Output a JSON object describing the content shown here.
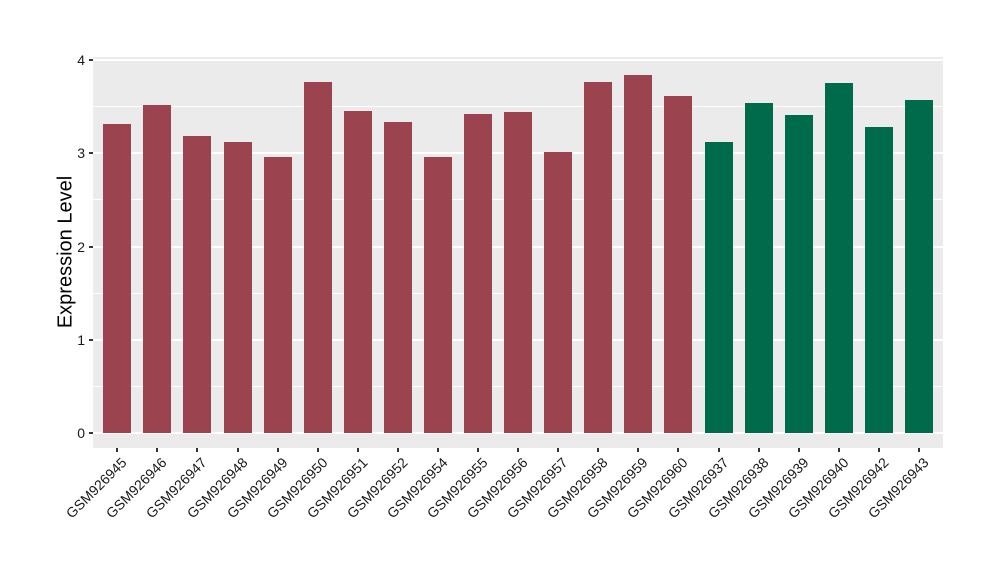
{
  "chart_data": {
    "type": "bar",
    "title": "",
    "xlabel": "",
    "ylabel": "Expression Level",
    "ylim": [
      0,
      4
    ],
    "yticks": [
      "0",
      "1",
      "2",
      "3",
      "4"
    ],
    "minor_gridlines": [
      0.5,
      1.5,
      2.5,
      3.5
    ],
    "grid": "on",
    "legend_position": "none",
    "panel_background": "#EBEBEB",
    "gridline_color": "#FFFFFF",
    "group_colors": {
      "red_group": "#9B4450",
      "green_group": "#006B4A"
    },
    "categories": [
      "GSM926945",
      "GSM926946",
      "GSM926947",
      "GSM926948",
      "GSM926949",
      "GSM926950",
      "GSM926951",
      "GSM926952",
      "GSM926954",
      "GSM926955",
      "GSM926956",
      "GSM926957",
      "GSM926958",
      "GSM926959",
      "GSM926960",
      "GSM926937",
      "GSM926938",
      "GSM926939",
      "GSM926940",
      "GSM926942",
      "GSM926943"
    ],
    "values": [
      3.31,
      3.52,
      3.19,
      3.12,
      2.96,
      3.76,
      3.45,
      3.34,
      2.96,
      3.42,
      3.44,
      3.01,
      3.76,
      3.84,
      3.61,
      3.12,
      3.54,
      3.41,
      3.75,
      3.28,
      3.57
    ],
    "bar_colors": [
      "#9B4450",
      "#9B4450",
      "#9B4450",
      "#9B4450",
      "#9B4450",
      "#9B4450",
      "#9B4450",
      "#9B4450",
      "#9B4450",
      "#9B4450",
      "#9B4450",
      "#9B4450",
      "#9B4450",
      "#9B4450",
      "#9B4450",
      "#006B4A",
      "#006B4A",
      "#006B4A",
      "#006B4A",
      "#006B4A",
      "#006B4A"
    ]
  }
}
